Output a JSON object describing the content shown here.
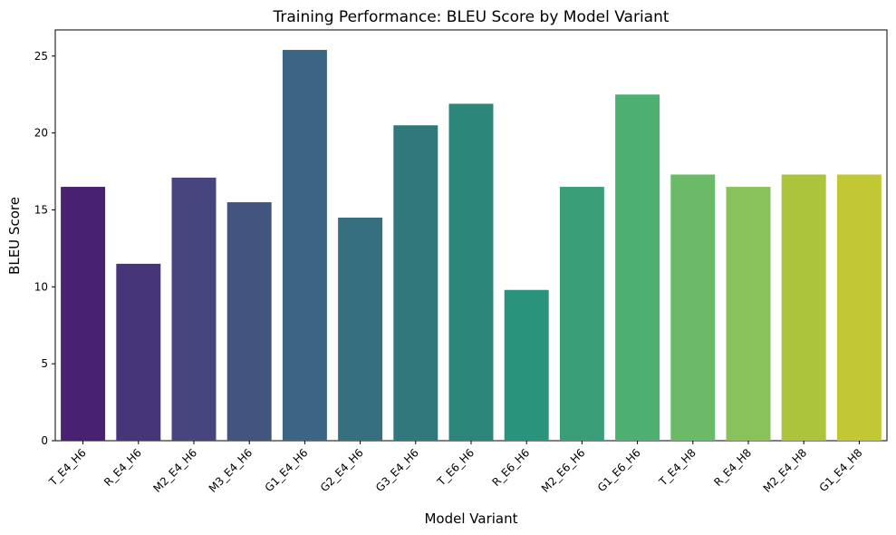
{
  "chart_data": {
    "type": "bar",
    "title": "Training Performance: BLEU Score by Model Variant",
    "xlabel": "Model Variant",
    "ylabel": "BLEU Score",
    "categories": [
      "T_E4_H6",
      "R_E4_H6",
      "M2_E4_H6",
      "M3_E4_H6",
      "G1_E4_H6",
      "G2_E4_H6",
      "G3_E4_H6",
      "T_E6_H6",
      "R_E6_H6",
      "M2_E6_H6",
      "G1_E6_H6",
      "T_E4_H8",
      "R_E4_H8",
      "M2_E4_H8",
      "G1_E4_H8"
    ],
    "values": [
      16.5,
      11.5,
      17.1,
      15.5,
      25.4,
      14.5,
      20.5,
      21.9,
      9.8,
      16.5,
      22.5,
      17.3,
      16.5,
      17.3,
      17.3
    ],
    "colors": [
      "#482173",
      "#473579",
      "#46457e",
      "#41557f",
      "#3b6582",
      "#36707f",
      "#30787c",
      "#2c867a",
      "#2a937c",
      "#3a9f79",
      "#4daf71",
      "#6aba67",
      "#89c25b",
      "#acc43c",
      "#c2c833"
    ],
    "yticks": [
      0,
      5,
      10,
      15,
      20,
      25
    ],
    "ylim": [
      0,
      26.7
    ],
    "grid": false,
    "legend": "none"
  }
}
